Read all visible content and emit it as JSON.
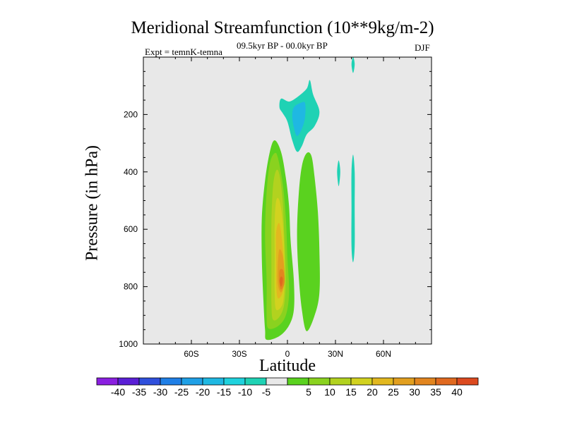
{
  "chart_data": {
    "type": "contour",
    "title": "Meridional Streamfunction (10**9kg/m-2)",
    "experiment_label": "Expt = temnK-temna",
    "period_label": "09.5kyr BP - 00.0kyr BP",
    "season_label": "DJF",
    "xlabel": "Latitude",
    "ylabel": "Pressure (in hPa)",
    "xlim": [
      -90,
      90
    ],
    "ylim": [
      1000,
      0
    ],
    "x_ticks": [
      {
        "value": -60,
        "label": "60S"
      },
      {
        "value": -30,
        "label": "30S"
      },
      {
        "value": 0,
        "label": "0"
      },
      {
        "value": 30,
        "label": "30N"
      },
      {
        "value": 60,
        "label": "60N"
      }
    ],
    "y_ticks": [
      {
        "value": 200,
        "label": "200"
      },
      {
        "value": 400,
        "label": "400"
      },
      {
        "value": 600,
        "label": "600"
      },
      {
        "value": 800,
        "label": "800"
      },
      {
        "value": 1000,
        "label": "1000"
      }
    ],
    "colorbar": {
      "colors": [
        "#8a1fe0",
        "#5a1fd6",
        "#2f4fdc",
        "#1f7fe6",
        "#1fa0e6",
        "#1fb8e2",
        "#1fd2dd",
        "#1fd2b4",
        "#e8e8e8",
        "#5ad21f",
        "#8ad21f",
        "#b2d21f",
        "#d2d21f",
        "#e2b81f",
        "#e29f1f",
        "#e2851f",
        "#e0691f",
        "#dc4a1f"
      ],
      "labels": [
        "-40",
        "-35",
        "-30",
        "-25",
        "-20",
        "-15",
        "-10",
        "-5",
        "5",
        "10",
        "15",
        "20",
        "25",
        "30",
        "35",
        "40"
      ]
    },
    "features": [
      {
        "name": "positive-cell-outer",
        "level": 5,
        "color": "#5ad21f",
        "points": [
          [
            -13,
            985
          ],
          [
            -5,
            972
          ],
          [
            1,
            935
          ],
          [
            4,
            880
          ],
          [
            4,
            780
          ],
          [
            2,
            640
          ],
          [
            1,
            520
          ],
          [
            -1,
            420
          ],
          [
            -4,
            330
          ],
          [
            -8,
            290
          ],
          [
            -11,
            330
          ],
          [
            -14,
            430
          ],
          [
            -16,
            560
          ],
          [
            -16,
            700
          ],
          [
            -15,
            850
          ],
          [
            -14,
            950
          ]
        ]
      },
      {
        "name": "positive-cell-secondary",
        "level": 5,
        "color": "#5ad21f",
        "points": [
          [
            12,
            955
          ],
          [
            17,
            900
          ],
          [
            20,
            820
          ],
          [
            20,
            680
          ],
          [
            19,
            540
          ],
          [
            17,
            420
          ],
          [
            15,
            345
          ],
          [
            12,
            335
          ],
          [
            9,
            380
          ],
          [
            7,
            480
          ],
          [
            6,
            620
          ],
          [
            7,
            760
          ],
          [
            9,
            880
          ]
        ]
      },
      {
        "name": "positive-cell-10",
        "level": 10,
        "color": "#8ad21f",
        "points": [
          [
            -12,
            945
          ],
          [
            -6,
            938
          ],
          [
            -1,
            900
          ],
          [
            1,
            820
          ],
          [
            0,
            700
          ],
          [
            -1,
            560
          ],
          [
            -3,
            440
          ],
          [
            -6,
            350
          ],
          [
            -8,
            335
          ],
          [
            -11,
            370
          ],
          [
            -13,
            470
          ],
          [
            -14,
            620
          ],
          [
            -13,
            780
          ],
          [
            -13,
            900
          ]
        ]
      },
      {
        "name": "positive-cell-15",
        "level": 15,
        "color": "#b2d21f",
        "points": [
          [
            -9,
            915
          ],
          [
            -5,
            905
          ],
          [
            -2,
            860
          ],
          [
            -1,
            760
          ],
          [
            -2,
            620
          ],
          [
            -3,
            500
          ],
          [
            -5,
            410
          ],
          [
            -7,
            395
          ],
          [
            -9,
            450
          ],
          [
            -10,
            580
          ],
          [
            -10,
            730
          ],
          [
            -10,
            860
          ]
        ]
      },
      {
        "name": "positive-cell-20",
        "level": 20,
        "color": "#d2d21f",
        "points": [
          [
            -7,
            880
          ],
          [
            -3,
            860
          ],
          [
            -2,
            790
          ],
          [
            -2,
            680
          ],
          [
            -3,
            570
          ],
          [
            -5,
            500
          ],
          [
            -7,
            500
          ],
          [
            -8,
            580
          ],
          [
            -8,
            700
          ],
          [
            -8,
            820
          ]
        ]
      },
      {
        "name": "positive-cell-25",
        "level": 25,
        "color": "#e2b81f",
        "points": [
          [
            -6,
            840
          ],
          [
            -3,
            820
          ],
          [
            -2,
            760
          ],
          [
            -3,
            660
          ],
          [
            -5,
            580
          ],
          [
            -7,
            610
          ],
          [
            -7,
            700
          ],
          [
            -7,
            790
          ]
        ]
      },
      {
        "name": "positive-cell-30",
        "level": 30,
        "color": "#e29f1f",
        "points": [
          [
            -4,
            820
          ],
          [
            -2,
            790
          ],
          [
            -2,
            740
          ],
          [
            -3,
            690
          ],
          [
            -5,
            670
          ],
          [
            -6,
            720
          ],
          [
            -6,
            790
          ]
        ]
      },
      {
        "name": "positive-cell-35",
        "level": 35,
        "color": "#e2851f",
        "points": [
          [
            -4,
            810
          ],
          [
            -2,
            790
          ],
          [
            -2,
            760
          ],
          [
            -3,
            740
          ],
          [
            -5,
            745
          ],
          [
            -5,
            790
          ]
        ]
      },
      {
        "name": "positive-cell-40",
        "level": 40,
        "color": "#e0691f",
        "points": [
          [
            -4,
            800
          ],
          [
            -3,
            785
          ],
          [
            -3,
            770
          ],
          [
            -4,
            765
          ],
          [
            -5,
            780
          ]
        ]
      },
      {
        "name": "negative-cell-upper",
        "level": -5,
        "color": "#1fd2b4",
        "points": [
          [
            -4,
            145
          ],
          [
            1,
            155
          ],
          [
            6,
            140
          ],
          [
            12,
            110
          ],
          [
            14,
            80
          ],
          [
            16,
            130
          ],
          [
            20,
            190
          ],
          [
            17,
            240
          ],
          [
            12,
            270
          ],
          [
            9,
            310
          ],
          [
            6,
            330
          ],
          [
            3,
            290
          ],
          [
            0,
            225
          ],
          [
            -3,
            195
          ],
          [
            -5,
            175
          ]
        ]
      },
      {
        "name": "negative-cell-upper-core",
        "level": -10,
        "color": "#1fb8e2",
        "points": [
          [
            4,
            175
          ],
          [
            8,
            160
          ],
          [
            11,
            160
          ],
          [
            11,
            210
          ],
          [
            9,
            250
          ],
          [
            6,
            275
          ],
          [
            4,
            245
          ],
          [
            3,
            205
          ]
        ]
      },
      {
        "name": "negative-strip-high-lat",
        "level": -5,
        "color": "#1fd2b4",
        "points": [
          [
            41,
            340
          ],
          [
            42,
            400
          ],
          [
            42,
            520
          ],
          [
            42,
            660
          ],
          [
            41,
            715
          ],
          [
            40,
            660
          ],
          [
            40,
            520
          ],
          [
            40,
            400
          ]
        ]
      },
      {
        "name": "negative-sliver-high-lat",
        "level": -5,
        "color": "#1fd2b4",
        "points": [
          [
            32,
            360
          ],
          [
            33,
            400
          ],
          [
            32,
            450
          ],
          [
            31,
            400
          ]
        ]
      },
      {
        "name": "negative-top-sliver",
        "level": -5,
        "color": "#1fd2b4",
        "points": [
          [
            41,
            0
          ],
          [
            42,
            25
          ],
          [
            41,
            55
          ],
          [
            40,
            25
          ]
        ]
      }
    ]
  }
}
